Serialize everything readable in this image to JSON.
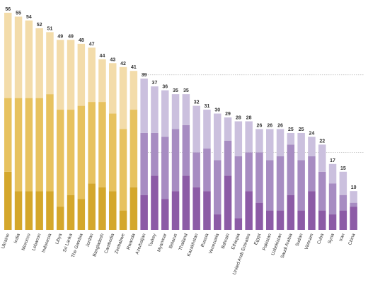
{
  "chart_data": {
    "type": "bar",
    "stacked": true,
    "title": "",
    "xlabel": "",
    "ylabel": "",
    "ylim": [
      0,
      56
    ],
    "grid": true,
    "legend": "none",
    "categories": [
      "Ukraine",
      "India",
      "Morocco",
      "Lebanon",
      "Indonesia",
      "Libya",
      "Sri Lanka",
      "The Gambia",
      "Jordan",
      "Bangladesh",
      "Cambodia",
      "Zimbabwe",
      "Rwanda",
      "Azerbaijan",
      "Turkey",
      "Myanmar",
      "Belarus",
      "Thailand",
      "Kazakhstan",
      "Russia",
      "Venezuela",
      "Bahrain",
      "Ethiopia",
      "United Arab Emirates",
      "Egypt",
      "Pakistan",
      "Uzbekistan",
      "Saudi Arabia",
      "Sudan",
      "Vietnam",
      "Cuba",
      "Syria",
      "Iran",
      "China"
    ],
    "totals": [
      56,
      55,
      54,
      52,
      51,
      49,
      49,
      48,
      47,
      44,
      43,
      42,
      41,
      39,
      37,
      36,
      35,
      35,
      32,
      31,
      30,
      29,
      28,
      28,
      26,
      26,
      26,
      25,
      25,
      24,
      22,
      17,
      15,
      10
    ],
    "series": [
      {
        "values": [
          15,
          10,
          10,
          10,
          10,
          6,
          9,
          8,
          12,
          11,
          10,
          5,
          11,
          9,
          14,
          8,
          10,
          14,
          11,
          10,
          4,
          14,
          3,
          10,
          7,
          5,
          5,
          9,
          5,
          10,
          5,
          4,
          5,
          6
        ]
      },
      {
        "values": [
          19,
          24,
          24,
          24,
          25,
          25,
          22,
          24,
          21,
          22,
          20,
          21,
          20,
          16,
          11,
          16,
          16,
          13,
          9,
          11,
          14,
          9,
          16,
          10,
          13,
          13,
          14,
          13,
          13,
          9,
          10,
          8,
          4,
          1
        ]
      },
      {
        "values": [
          22,
          21,
          20,
          18,
          16,
          18,
          18,
          16,
          14,
          11,
          13,
          16,
          10,
          14,
          12,
          12,
          9,
          8,
          12,
          10,
          12,
          6,
          9,
          8,
          6,
          8,
          7,
          3,
          7,
          5,
          7,
          5,
          6,
          3
        ]
      }
    ],
    "colors": {
      "group1": [
        "#d4a72c",
        "#e7c25f",
        "#f3dcaa"
      ],
      "group2": [
        "#8c5ba6",
        "#a78cc2",
        "#cbc0de"
      ],
      "group1_count": 13
    }
  }
}
